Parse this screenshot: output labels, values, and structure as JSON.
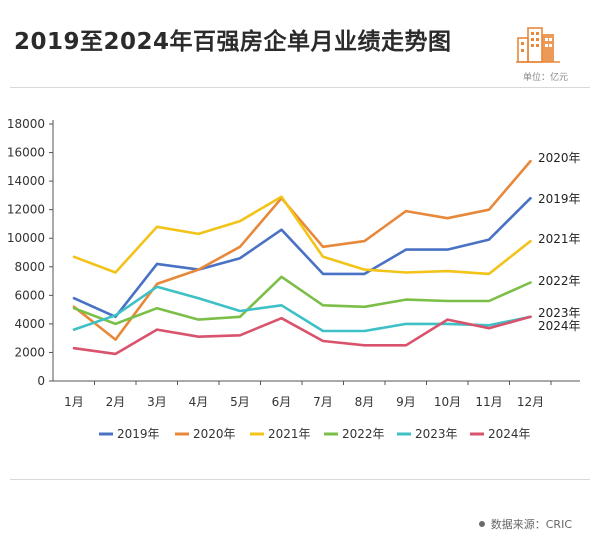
{
  "header": {
    "title": "2019至2024年百强房企单月业绩走势图",
    "unit": "单位：亿元",
    "logo_icon": "buildings-icon"
  },
  "footer": {
    "source": "数据来源：CRIC"
  },
  "chart_data": {
    "type": "line",
    "title": "2019至2024年百强房企单月业绩走势图",
    "xlabel": "",
    "ylabel": "",
    "ylim": [
      0,
      18000
    ],
    "yticks": [
      0,
      2000,
      4000,
      6000,
      8000,
      10000,
      12000,
      14000,
      16000,
      18000
    ],
    "categories": [
      "1月",
      "2月",
      "3月",
      "4月",
      "5月",
      "6月",
      "7月",
      "8月",
      "9月",
      "10月",
      "11月",
      "12月"
    ],
    "grid": false,
    "legend_position": "bottom",
    "series": [
      {
        "name": "2019年",
        "color": "#4a72c4",
        "values": [
          5800,
          4500,
          8200,
          7800,
          8600,
          10600,
          7500,
          7500,
          9200,
          9200,
          9900,
          12800
        ]
      },
      {
        "name": "2020年",
        "color": "#e8883a",
        "values": [
          5200,
          2900,
          6800,
          7800,
          9400,
          12800,
          9400,
          9800,
          11900,
          11400,
          12000,
          15400
        ]
      },
      {
        "name": "2021年",
        "color": "#f2c318",
        "values": [
          8700,
          7600,
          10800,
          10300,
          11200,
          12900,
          8700,
          7800,
          7600,
          7700,
          7500,
          9800
        ]
      },
      {
        "name": "2022年",
        "color": "#7cbf48",
        "values": [
          5100,
          4000,
          5100,
          4300,
          4500,
          7300,
          5300,
          5200,
          5700,
          5600,
          5600,
          6900
        ]
      },
      {
        "name": "2023年",
        "color": "#3ec1c6",
        "values": [
          3600,
          4600,
          6600,
          5800,
          4900,
          5300,
          3500,
          3500,
          4000,
          4000,
          3900,
          4500
        ]
      },
      {
        "name": "2024年",
        "color": "#d9536c",
        "values": [
          2300,
          1900,
          3600,
          3100,
          3200,
          4400,
          2800,
          2500,
          2500,
          4300,
          3700,
          4500
        ]
      }
    ],
    "end_labels": [
      "2020年",
      "2019年",
      "2021年",
      "2022年",
      "2023年",
      "2024年"
    ]
  }
}
